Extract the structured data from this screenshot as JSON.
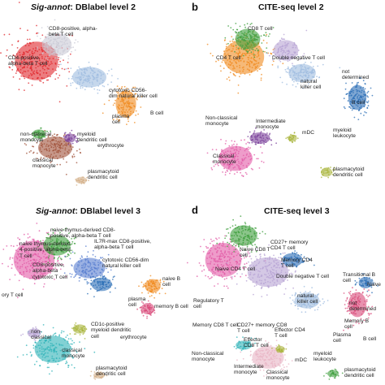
{
  "panels": {
    "a": {
      "title_italic": "Sig-annot",
      "title_rest": ": DBlabel level 2",
      "labels": [
        "CD8-positive, alpha-\nbeta T cell",
        "CD4-positive,\nalpha-beta T cell",
        "cytotoxic CD56-\ndim natural killer cell",
        "B cell",
        "plasma\ncell",
        "non-classical\nmonocyte",
        "myeloid\ndendritic cell",
        "erythrocyte",
        "classical\nmonocyte",
        "plasmacytoid\ndendritic cell"
      ]
    },
    "b": {
      "letter": "b",
      "title": "CITE-seq level 2",
      "labels": [
        "CD8 T cell",
        "CD4 T cell",
        "Double negative T cell",
        "natural\nkiller cell",
        "not\ndetermined",
        "B cell",
        "Non-classical\nmonocyte",
        "Intermediate\nmonocyte",
        "mDC",
        "myeloid\nleukocyte",
        "Classical\nmonocyte",
        "plasmacytoid\ndendritic cell"
      ]
    },
    "c": {
      "title_italic": "Sig-annot",
      "title_rest": ": DBlabel level 3",
      "labels": [
        "naive thymus-derived CD8-\npositive, alpha-beta T cell",
        "naive thymus-derived\n4-positive, alpha-beta\nT cell",
        "IL7R-max CD8-positive,\nalpha-beta T cell",
        "cytotoxic CD56-dim\nnatural killer cell",
        "naive B\ncell",
        "memory B cell",
        "plasma\ncell",
        "CD8-positive,\nalpha-beta\ncytotoxic T cell",
        "ory T cell",
        "non-\nclassical",
        "CD1c-positive\nmyeloid dendritic\ncell",
        "erythrocyte",
        "classical\nmonocyte",
        "plasmacytoid\ndendritic cell"
      ]
    },
    "d": {
      "letter": "d",
      "title": "CITE-seq level 3",
      "labels": [
        "CD27+ memory\nCD4 T cell",
        "Naive CD8 T\ncell",
        "Memory CD4\nT cell",
        "Naive CD4 T cell",
        "Double negative T cell",
        "Regulatory T\ncell",
        "natural\nkiller cell",
        "Transitional B\ncell",
        "Naive",
        "not\ndetermined",
        "Memory CD8 T cell",
        "CD27+ memory CD8\nT cell",
        "Effector CD4\nT cell",
        "Effector\nCD8 T cell",
        "Plasma\ncell",
        "Memory B\ncell",
        "B cell",
        "Non-classical\nmonocyte",
        "mDC",
        "myeloid\nleukocyte",
        "Intermediate\nmonocyte",
        "Classical\nmonocyte",
        "plasmacytoid\ndendritic cell"
      ]
    }
  },
  "colors": {
    "pink": "#e25aa6",
    "red": "#e0262b",
    "green": "#3e9e3c",
    "lightblue": "#9fbce0",
    "blue": "#2a6db5",
    "orange": "#f08a1e",
    "brown": "#a0523a",
    "purple": "#7a3f9a",
    "olive": "#a8b43a",
    "teal": "#2fb3b8",
    "lavender": "#b7a3d4",
    "tan": "#d4b08a",
    "rose": "#e8b4c4"
  }
}
